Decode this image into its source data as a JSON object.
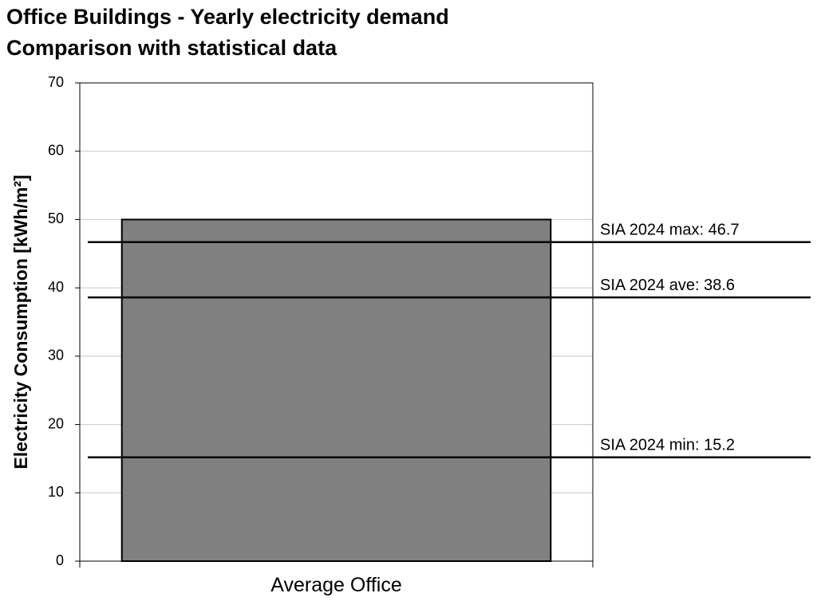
{
  "chart_data": {
    "type": "bar",
    "title": "Office Buildings  - Yearly electricity demand",
    "subtitle": "Comparison with statistical data",
    "y_label": "Electricity Consumption [kWh/m²]",
    "categories": [
      "Average Office"
    ],
    "values": [
      50
    ],
    "color": "#808080",
    "ylim": [
      0,
      70
    ],
    "yticks": [
      0,
      10,
      20,
      30,
      40,
      50,
      60,
      70
    ],
    "grid": true,
    "reference_lines": [
      {
        "label": "SIA 2024 max: 46.7",
        "value": 46.7
      },
      {
        "label": "SIA 2024 ave: 38.6",
        "value": 38.6
      },
      {
        "label": "SIA 2024 min: 15.2",
        "value": 15.2
      }
    ]
  }
}
